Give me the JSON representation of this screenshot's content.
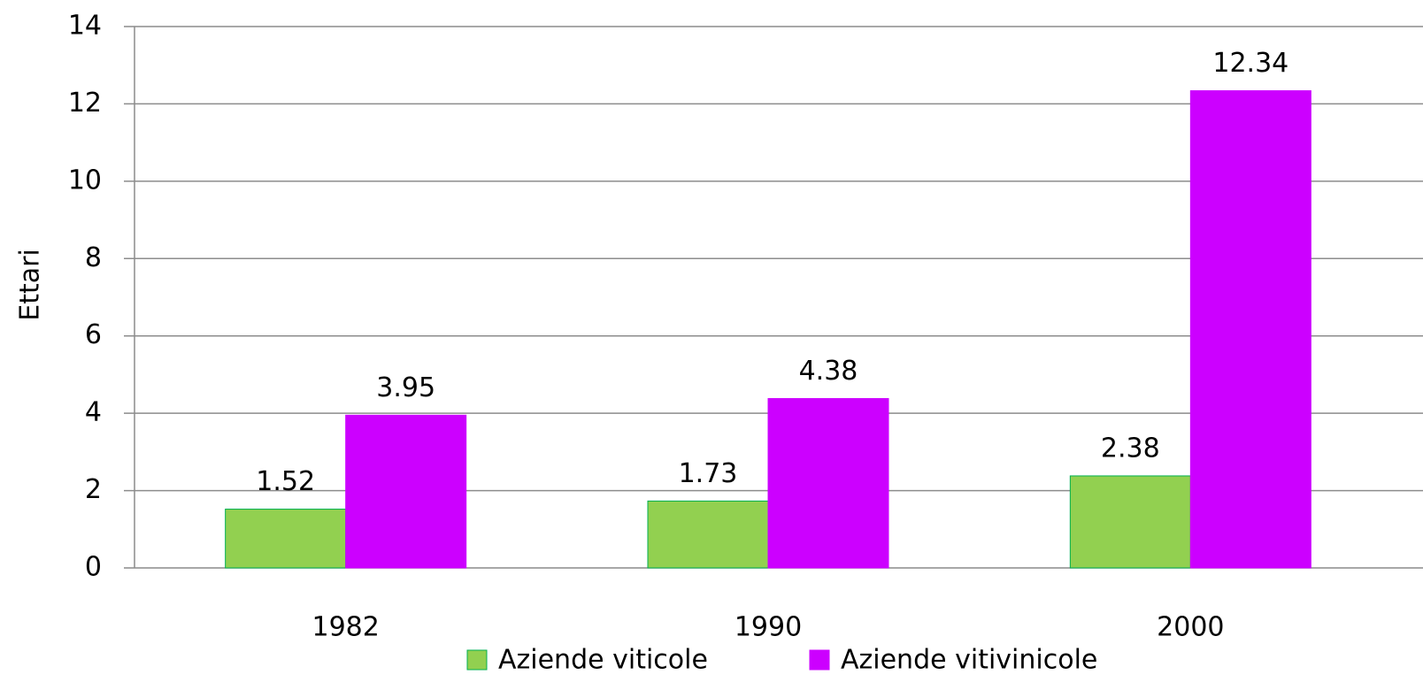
{
  "chart_data": {
    "type": "bar",
    "y_label": "Ettari",
    "categories": [
      "1982",
      "1990",
      "2000"
    ],
    "series": [
      {
        "name": "Aziende viticole",
        "color": "#92d050",
        "values": [
          1.52,
          1.73,
          2.38
        ]
      },
      {
        "name": "Aziende vitivinicole",
        "color": "#cc00ff",
        "values": [
          3.95,
          4.38,
          12.34
        ]
      }
    ],
    "ylim": [
      0,
      14
    ],
    "yticks": [
      0,
      2,
      4,
      6,
      8,
      10,
      12,
      14
    ],
    "grid": true,
    "legend": "bottom"
  }
}
